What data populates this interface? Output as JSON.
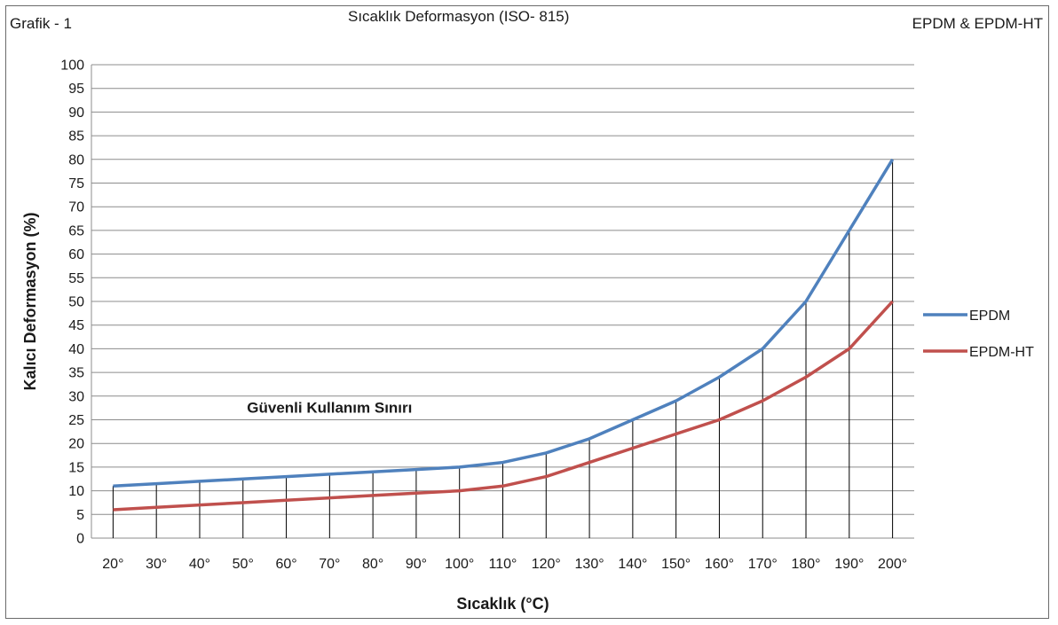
{
  "header": {
    "left": "Grafik - 1",
    "center": "Sıcaklık Deformasyon (ISO- 815)",
    "right": "EPDM & EPDM-HT"
  },
  "colors": {
    "EPDM": "#4f81bd",
    "EPDM-HT": "#c0504d",
    "grid": "#8c8c8c",
    "droplines": "#000000"
  },
  "chart_data": {
    "type": "line",
    "title": "Sıcaklık Deformasyon (ISO- 815)",
    "xlabel": "Sıcaklık (°C)",
    "ylabel": "Kalıcı Deformasyon (%)",
    "categories": [
      "20°",
      "30°",
      "40°",
      "50°",
      "60°",
      "70°",
      "80°",
      "90°",
      "100°",
      "110°",
      "120°",
      "130°",
      "140°",
      "150°",
      "160°",
      "170°",
      "180°",
      "190°",
      "200°"
    ],
    "ylim": [
      0,
      100
    ],
    "ystep": 5,
    "grid": true,
    "legend_position": "right",
    "drop_lines": true,
    "series": [
      {
        "name": "EPDM",
        "values": [
          11,
          11.5,
          12,
          12.5,
          13,
          13.5,
          14,
          14.5,
          15,
          16,
          18,
          21,
          25,
          29,
          34,
          40,
          50,
          65,
          80
        ]
      },
      {
        "name": "EPDM-HT",
        "values": [
          6,
          6.5,
          7,
          7.5,
          8,
          8.5,
          9,
          9.5,
          10,
          11,
          13,
          16,
          19,
          22,
          25,
          29,
          34,
          40,
          50
        ]
      }
    ],
    "annotations": [
      {
        "text": "Güvenli Kullanım Sınırı",
        "x_category": "70°",
        "y": 26.5
      }
    ]
  }
}
